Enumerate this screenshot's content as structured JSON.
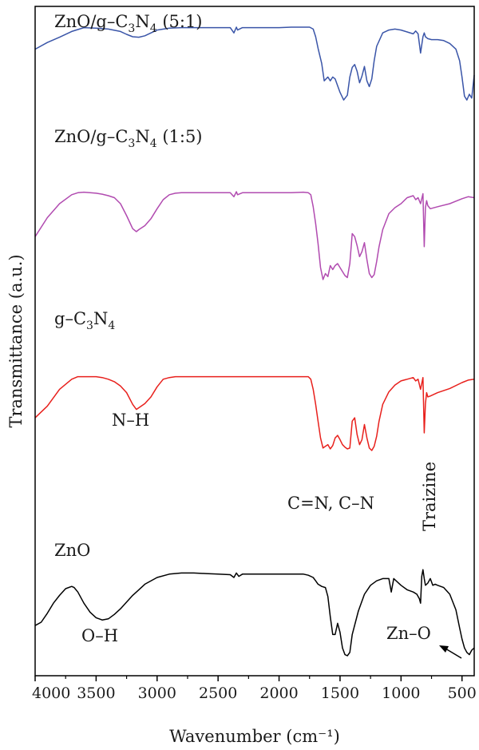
{
  "chart_data": {
    "type": "line",
    "title": "",
    "xlabel": "Wavenumber (cm⁻¹)",
    "ylabel": "Transmittance (a.u.)",
    "xlim": [
      4000,
      400
    ],
    "x_reversed": true,
    "grid": false,
    "x_ticks": [
      {
        "value": 4000,
        "label": "4000"
      },
      {
        "value": 3500,
        "label": "3500"
      },
      {
        "value": 3000,
        "label": "3000"
      },
      {
        "value": 2500,
        "label": "2500"
      },
      {
        "value": 2000,
        "label": "2000"
      },
      {
        "value": 1500,
        "label": "1500"
      },
      {
        "value": 1000,
        "label": "1000"
      },
      {
        "value": 500,
        "label": "500"
      }
    ],
    "series": [
      {
        "name": "ZnO/g–C₃N₄ (5:1)",
        "color": "#3a55a8",
        "x": [
          4000,
          3900,
          3800,
          3700,
          3600,
          3500,
          3400,
          3300,
          3250,
          3200,
          3150,
          3100,
          3050,
          3000,
          2900,
          2800,
          2700,
          2600,
          2500,
          2400,
          2370,
          2350,
          2340,
          2300,
          2200,
          2100,
          2000,
          1900,
          1800,
          1750,
          1720,
          1700,
          1680,
          1650,
          1630,
          1600,
          1580,
          1560,
          1540,
          1500,
          1470,
          1440,
          1420,
          1400,
          1380,
          1360,
          1340,
          1320,
          1300,
          1280,
          1260,
          1240,
          1220,
          1200,
          1150,
          1100,
          1050,
          1000,
          950,
          900,
          880,
          860,
          840,
          820,
          810,
          800,
          780,
          750,
          700,
          650,
          600,
          550,
          520,
          500,
          480,
          460,
          440,
          420,
          400
        ],
        "y": [
          0.7,
          1.4,
          1.95,
          2.55,
          2.95,
          2.9,
          2.8,
          2.55,
          2.25,
          2.0,
          1.95,
          2.1,
          2.4,
          2.7,
          2.9,
          2.95,
          2.95,
          2.95,
          2.95,
          2.95,
          2.4,
          3.0,
          2.7,
          2.95,
          2.95,
          2.95,
          2.95,
          3.0,
          3.0,
          3.0,
          2.8,
          2.0,
          0.8,
          -0.8,
          -2.6,
          -2.2,
          -2.6,
          -2.2,
          -2.4,
          -3.8,
          -4.6,
          -4.1,
          -2.2,
          -1.2,
          -0.9,
          -1.6,
          -2.8,
          -2.1,
          -1.1,
          -2.6,
          -3.2,
          -2.4,
          -0.5,
          1.0,
          2.4,
          2.7,
          2.8,
          2.7,
          2.5,
          2.3,
          2.6,
          2.3,
          0.3,
          2.0,
          2.4,
          2.0,
          1.8,
          1.7,
          1.7,
          1.6,
          1.3,
          0.7,
          -0.5,
          -2.2,
          -4.2,
          -4.6,
          -4.0,
          -4.4,
          -2.0
        ]
      },
      {
        "name": "ZnO/g–C₃N₄ (1:5)",
        "color": "#b14bb0",
        "x": [
          4000,
          3900,
          3800,
          3700,
          3650,
          3600,
          3550,
          3500,
          3450,
          3400,
          3350,
          3300,
          3250,
          3200,
          3170,
          3150,
          3100,
          3050,
          3000,
          2950,
          2900,
          2850,
          2800,
          2700,
          2600,
          2500,
          2400,
          2370,
          2350,
          2340,
          2300,
          2200,
          2100,
          2000,
          1900,
          1800,
          1760,
          1740,
          1720,
          1700,
          1680,
          1660,
          1640,
          1620,
          1600,
          1580,
          1560,
          1540,
          1520,
          1500,
          1480,
          1460,
          1440,
          1420,
          1400,
          1380,
          1360,
          1340,
          1320,
          1300,
          1280,
          1260,
          1240,
          1220,
          1200,
          1180,
          1150,
          1100,
          1050,
          1000,
          950,
          900,
          880,
          860,
          840,
          820,
          810,
          800,
          790,
          780,
          760,
          700,
          600,
          500,
          450,
          400
        ],
        "y": [
          -0.5,
          1.4,
          2.8,
          3.7,
          3.9,
          3.95,
          3.9,
          3.85,
          3.75,
          3.6,
          3.4,
          2.8,
          1.6,
          0.3,
          0.0,
          0.2,
          0.6,
          1.3,
          2.3,
          3.2,
          3.7,
          3.85,
          3.9,
          3.9,
          3.9,
          3.9,
          3.9,
          3.5,
          4.0,
          3.7,
          3.9,
          3.9,
          3.9,
          3.9,
          3.9,
          3.95,
          3.9,
          3.7,
          2.5,
          0.8,
          -1.2,
          -3.6,
          -4.8,
          -4.2,
          -4.5,
          -3.4,
          -3.8,
          -3.4,
          -3.2,
          -3.6,
          -4.0,
          -4.4,
          -4.6,
          -3.2,
          -0.2,
          -0.5,
          -1.4,
          -2.5,
          -2.0,
          -1.1,
          -2.8,
          -4.2,
          -4.6,
          -4.3,
          -3.0,
          -1.5,
          0.2,
          1.8,
          2.4,
          2.8,
          3.4,
          3.6,
          3.2,
          3.4,
          2.8,
          3.8,
          -1.5,
          2.4,
          3.1,
          2.6,
          2.3,
          2.5,
          2.8,
          3.3,
          3.5,
          3.4
        ]
      },
      {
        "name": "g–C₃N₄",
        "color": "#e8201c",
        "x": [
          4000,
          3900,
          3800,
          3700,
          3650,
          3600,
          3550,
          3500,
          3450,
          3400,
          3350,
          3300,
          3250,
          3200,
          3170,
          3150,
          3100,
          3050,
          3000,
          2950,
          2900,
          2850,
          2800,
          2700,
          2600,
          2500,
          2400,
          2300,
          2200,
          2100,
          2000,
          1900,
          1800,
          1760,
          1740,
          1720,
          1700,
          1680,
          1660,
          1640,
          1620,
          1600,
          1580,
          1560,
          1540,
          1520,
          1500,
          1480,
          1460,
          1440,
          1420,
          1400,
          1380,
          1360,
          1340,
          1320,
          1300,
          1280,
          1260,
          1240,
          1220,
          1200,
          1180,
          1150,
          1100,
          1050,
          1000,
          950,
          900,
          880,
          860,
          840,
          820,
          810,
          800,
          790,
          780,
          760,
          700,
          600,
          500,
          450,
          400
        ],
        "y": [
          -2.2,
          -0.8,
          1.2,
          2.4,
          2.7,
          2.7,
          2.7,
          2.7,
          2.6,
          2.4,
          2.1,
          1.6,
          0.8,
          -0.6,
          -1.2,
          -1.0,
          -0.5,
          0.3,
          1.5,
          2.4,
          2.6,
          2.7,
          2.7,
          2.7,
          2.7,
          2.7,
          2.7,
          2.7,
          2.7,
          2.7,
          2.7,
          2.7,
          2.7,
          2.7,
          2.4,
          1.2,
          -0.6,
          -2.6,
          -4.6,
          -5.8,
          -5.6,
          -5.4,
          -5.9,
          -5.5,
          -4.6,
          -4.3,
          -4.8,
          -5.4,
          -5.7,
          -5.9,
          -5.8,
          -2.6,
          -2.2,
          -4.2,
          -5.4,
          -4.8,
          -3.0,
          -4.6,
          -5.8,
          -6.1,
          -5.6,
          -4.4,
          -2.6,
          -0.6,
          0.9,
          1.7,
          2.2,
          2.4,
          2.6,
          2.2,
          2.4,
          1.2,
          2.6,
          -4.0,
          -0.5,
          0.8,
          0.3,
          0.4,
          0.8,
          1.3,
          2.0,
          2.3,
          2.4
        ]
      },
      {
        "name": "ZnO",
        "color": "#000000",
        "x": [
          4000,
          3950,
          3900,
          3850,
          3800,
          3750,
          3700,
          3680,
          3650,
          3600,
          3550,
          3500,
          3450,
          3400,
          3350,
          3300,
          3250,
          3200,
          3150,
          3100,
          3000,
          2900,
          2800,
          2700,
          2600,
          2500,
          2400,
          2370,
          2350,
          2330,
          2300,
          2200,
          2100,
          2000,
          1900,
          1800,
          1760,
          1720,
          1700,
          1680,
          1650,
          1620,
          1600,
          1580,
          1560,
          1540,
          1520,
          1500,
          1480,
          1460,
          1440,
          1420,
          1400,
          1350,
          1300,
          1250,
          1200,
          1150,
          1100,
          1080,
          1060,
          1040,
          1000,
          950,
          900,
          870,
          860,
          850,
          840,
          830,
          820,
          810,
          800,
          780,
          760,
          740,
          720,
          700,
          650,
          600,
          550,
          520,
          500,
          480,
          460,
          440,
          420,
          400
        ],
        "y": [
          -1.8,
          -1.5,
          -0.7,
          0.2,
          0.9,
          1.5,
          1.7,
          1.6,
          1.2,
          0.2,
          -0.6,
          -1.1,
          -1.3,
          -1.2,
          -0.8,
          -0.3,
          0.3,
          0.9,
          1.4,
          1.9,
          2.5,
          2.8,
          2.9,
          2.9,
          2.85,
          2.8,
          2.75,
          2.5,
          2.9,
          2.6,
          2.8,
          2.8,
          2.8,
          2.8,
          2.8,
          2.8,
          2.7,
          2.5,
          2.2,
          1.9,
          1.7,
          1.6,
          0.8,
          -1.0,
          -2.6,
          -2.6,
          -1.6,
          -2.4,
          -3.8,
          -4.4,
          -4.5,
          -4.2,
          -2.6,
          -0.5,
          1.0,
          1.8,
          2.2,
          2.4,
          2.4,
          1.2,
          2.4,
          2.2,
          1.8,
          1.4,
          1.2,
          1.0,
          0.8,
          0.6,
          0.2,
          2.6,
          3.2,
          2.4,
          1.8,
          2.0,
          2.4,
          1.8,
          1.9,
          1.8,
          1.6,
          1.0,
          -0.4,
          -2.0,
          -3.0,
          -3.8,
          -4.2,
          -4.4,
          -4.0,
          -3.8
        ]
      }
    ],
    "annotations": [
      {
        "text": "N–H",
        "x": 3140
      },
      {
        "text": "C=N, C–N",
        "x": 1380
      },
      {
        "text": "Traizine",
        "x": 810
      },
      {
        "text": "O–H",
        "x": 3400
      },
      {
        "text": "Zn–O",
        "x": 530
      }
    ]
  }
}
